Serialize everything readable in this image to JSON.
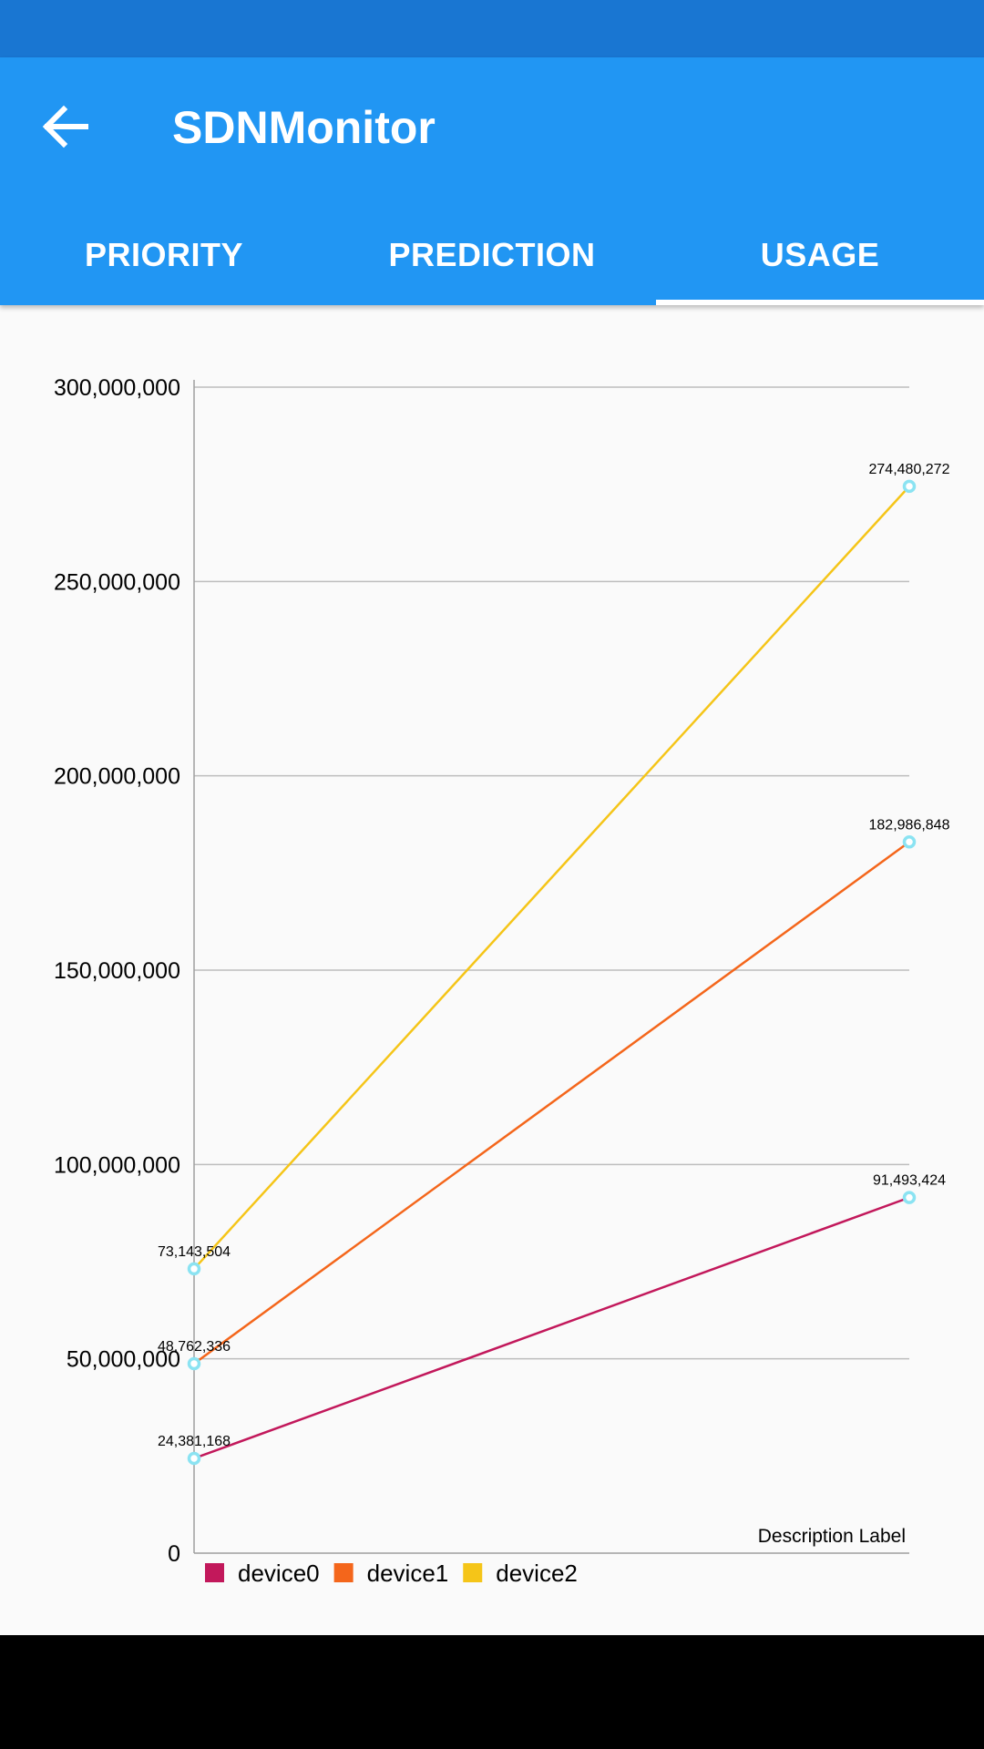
{
  "app": {
    "title": "SDNMonitor"
  },
  "tabs": [
    {
      "label": "PRIORITY",
      "active": false
    },
    {
      "label": "PREDICTION",
      "active": false
    },
    {
      "label": "USAGE",
      "active": true
    }
  ],
  "colors": {
    "app_bar": "#2196f3",
    "status_bar": "#1976d2",
    "grid": "#bdbdbd",
    "point_ring": "#8be3f2"
  },
  "chart_data": {
    "type": "line",
    "description_label": "Description Label",
    "x": [
      0,
      1
    ],
    "ylim": [
      0,
      300000000
    ],
    "yticks": [
      "0",
      "50,000,000",
      "100,000,000",
      "150,000,000",
      "200,000,000",
      "250,000,000",
      "300,000,000"
    ],
    "grid": true,
    "legend_position": "bottom-left",
    "series": [
      {
        "name": "device0",
        "color": "#c2185b",
        "values": [
          24381168,
          91493424
        ],
        "labels": [
          "24,381,168",
          "91,493,424"
        ]
      },
      {
        "name": "device1",
        "color": "#f4661b",
        "values": [
          48762336,
          182986848
        ],
        "labels": [
          "48,762,336",
          "182,986,848"
        ]
      },
      {
        "name": "device2",
        "color": "#f5c518",
        "values": [
          73143504,
          274480272
        ],
        "labels": [
          "73,143,504",
          "274,480,272"
        ]
      }
    ]
  }
}
